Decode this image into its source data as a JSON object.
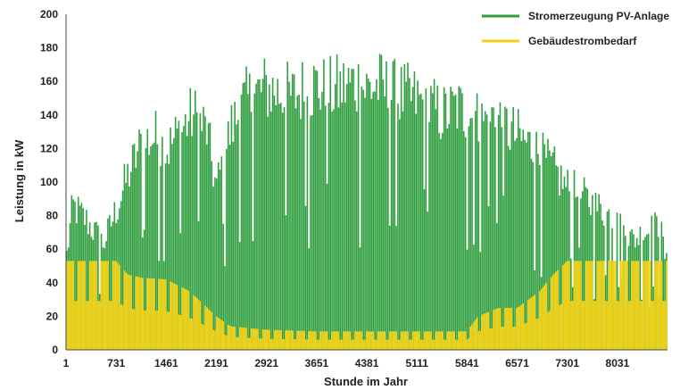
{
  "chart_data": {
    "type": "bar",
    "title": "",
    "xlabel": "Stunde im Jahr",
    "ylabel": "Leistung in kW",
    "ylim": [
      0,
      200
    ],
    "yticks": [
      "0",
      "20",
      "40",
      "60",
      "80",
      "100",
      "120",
      "140",
      "160",
      "180",
      "200"
    ],
    "xlim": [
      1,
      8760
    ],
    "xticks": [
      {
        "value": 1,
        "label": "1"
      },
      {
        "value": 731,
        "label": "731"
      },
      {
        "value": 1461,
        "label": "1461"
      },
      {
        "value": 2191,
        "label": "2191"
      },
      {
        "value": 2921,
        "label": "2921"
      },
      {
        "value": 3651,
        "label": "3651"
      },
      {
        "value": 4381,
        "label": "4381"
      },
      {
        "value": 5111,
        "label": "5111"
      },
      {
        "value": 5841,
        "label": "5841"
      },
      {
        "value": 6571,
        "label": "6571"
      },
      {
        "value": 7301,
        "label": "7301"
      },
      {
        "value": 8031,
        "label": "8031"
      }
    ],
    "grid": false,
    "legend": "top-right",
    "series": [
      {
        "name": "Stromerzeugung PV-Anlage",
        "color": "#2e9e3e",
        "style": "bars",
        "envelope": {
          "x": [
            1,
            100,
            300,
            550,
            731,
            900,
            1100,
            1300,
            1461,
            1650,
            1850,
            2050,
            2191,
            2400,
            2600,
            2800,
            2921,
            3100,
            3300,
            3500,
            3651,
            3800,
            4000,
            4200,
            4381,
            4550,
            4750,
            4950,
            5111,
            5300,
            5500,
            5700,
            5841,
            6050,
            6250,
            6450,
            6571,
            6750,
            6950,
            7150,
            7301,
            7500,
            7700,
            7900,
            8031,
            8250,
            8450,
            8650,
            8760
          ],
          "y": [
            60,
            98,
            88,
            72,
            95,
            118,
            140,
            145,
            135,
            148,
            160,
            150,
            110,
            150,
            168,
            175,
            178,
            175,
            172,
            178,
            180,
            175,
            178,
            182,
            178,
            180,
            175,
            172,
            170,
            165,
            160,
            165,
            160,
            155,
            160,
            150,
            145,
            140,
            130,
            120,
            110,
            105,
            98,
            92,
            85,
            75,
            80,
            85,
            55
          ]
        }
      },
      {
        "name": "Gebäudestrombedarf",
        "color": "#f0d010",
        "style": "bars",
        "envelope": {
          "x": [
            1,
            731,
            900,
            1100,
            1461,
            1800,
            2191,
            2400,
            2921,
            3651,
            4381,
            5111,
            5841,
            6000,
            6300,
            6571,
            6900,
            7100,
            7301,
            8031,
            8760
          ],
          "y": [
            53,
            53,
            45,
            43,
            42,
            35,
            20,
            14,
            12,
            11,
            11,
            11,
            11,
            20,
            25,
            25,
            35,
            45,
            53,
            53,
            53
          ]
        }
      }
    ]
  }
}
